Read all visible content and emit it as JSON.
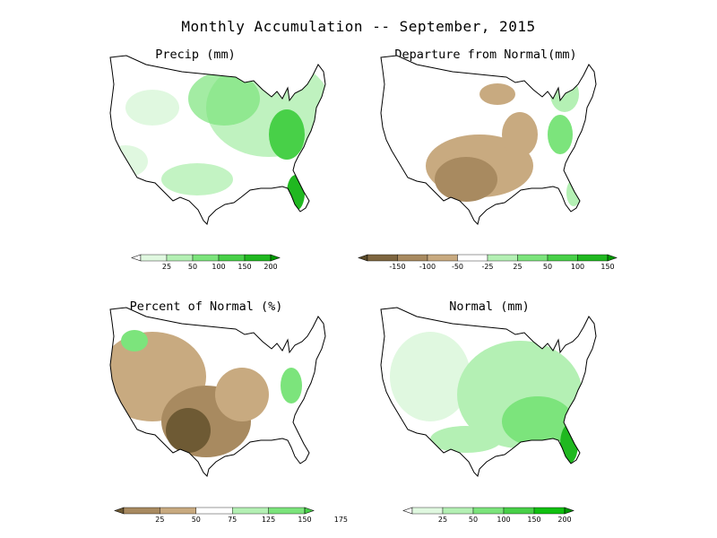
{
  "title": "Monthly Accumulation -- September, 2015",
  "panels": [
    {
      "title": "Precip (mm)",
      "colorbar": {
        "labels": [
          "25",
          "50",
          "100",
          "150",
          "200"
        ],
        "colors": [
          "#ffffff",
          "#e0f8e0",
          "#b4f0b4",
          "#7ce47c",
          "#48d048",
          "#20b820",
          "#009900"
        ]
      }
    },
    {
      "title": "Departure from Normal(mm)",
      "colorbar": {
        "labels": [
          "-150",
          "-100",
          "-50",
          "-25",
          "25",
          "50",
          "100",
          "150"
        ],
        "colors": [
          "#5a4a28",
          "#7e6640",
          "#a88a60",
          "#c8aa80",
          "#ffffff",
          "#b4f0b4",
          "#7ce47c",
          "#48d048",
          "#20b820",
          "#009900"
        ]
      }
    },
    {
      "title": "Percent of Normal (%)",
      "colorbar": {
        "labels": [
          "25",
          "50",
          "75",
          "125",
          "150",
          "175"
        ],
        "colors": [
          "#6e5a34",
          "#a88a60",
          "#c8aa80",
          "#ffffff",
          "#b4f0b4",
          "#7ce47c",
          "#48d048"
        ]
      }
    },
    {
      "title": "Normal (mm)",
      "colorbar": {
        "labels": [
          "25",
          "50",
          "100",
          "150",
          "200"
        ],
        "colors": [
          "#ffffff",
          "#e0f8e0",
          "#b4f0b4",
          "#7ce47c",
          "#48d048",
          "#10c010",
          "#009900"
        ]
      }
    }
  ]
}
